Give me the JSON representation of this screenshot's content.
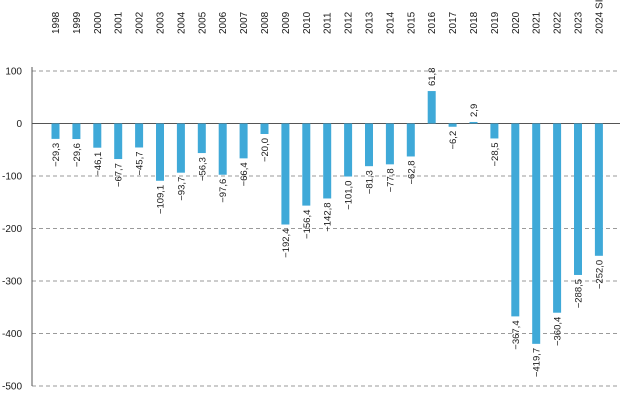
{
  "chart_data": {
    "type": "bar",
    "categories": [
      "1998",
      "1999",
      "2000",
      "2001",
      "2002",
      "2003",
      "2004",
      "2005",
      "2006",
      "2007",
      "2008",
      "2009",
      "2010",
      "2011",
      "2012",
      "2013",
      "2014",
      "2015",
      "2016",
      "2017",
      "2018",
      "2019",
      "2020",
      "2021",
      "2022",
      "2023",
      "2024 SI"
    ],
    "values": [
      -29.3,
      -29.6,
      -46.1,
      -67.7,
      -45.7,
      -109.1,
      -93.7,
      -56.3,
      -97.6,
      -66.4,
      -20.0,
      -192.4,
      -156.4,
      -142.8,
      -101.0,
      -81.3,
      -77.8,
      -62.8,
      61.8,
      -6.2,
      2.9,
      -28.5,
      -367.4,
      -419.7,
      -360.4,
      -288.5,
      -252.0
    ],
    "value_labels": [
      "−29,3",
      "−29,6",
      "−46,1",
      "−67,7",
      "−45,7",
      "−109,1",
      "−93,7",
      "−56,3",
      "−97,6",
      "−66,4",
      "−20,0",
      "−192,4",
      "−156,4",
      "−142,8",
      "−101,0",
      "−81,3",
      "−77,8",
      "−62,8",
      "61,8",
      "−6,2",
      "2,9",
      "−28,5",
      "−367,4",
      "−419,7",
      "−360,4",
      "−288,5",
      "−252,0"
    ],
    "yticks": [
      100,
      0,
      -100,
      -200,
      -300,
      -400,
      -500
    ],
    "ytick_labels": [
      "100",
      "0",
      "-100",
      "-200",
      "-300",
      "-400",
      "-500"
    ],
    "ylim": [
      -500,
      100
    ],
    "grid": true,
    "bar_color": "#3fa9d8",
    "title": "",
    "xlabel": "",
    "ylabel": ""
  }
}
